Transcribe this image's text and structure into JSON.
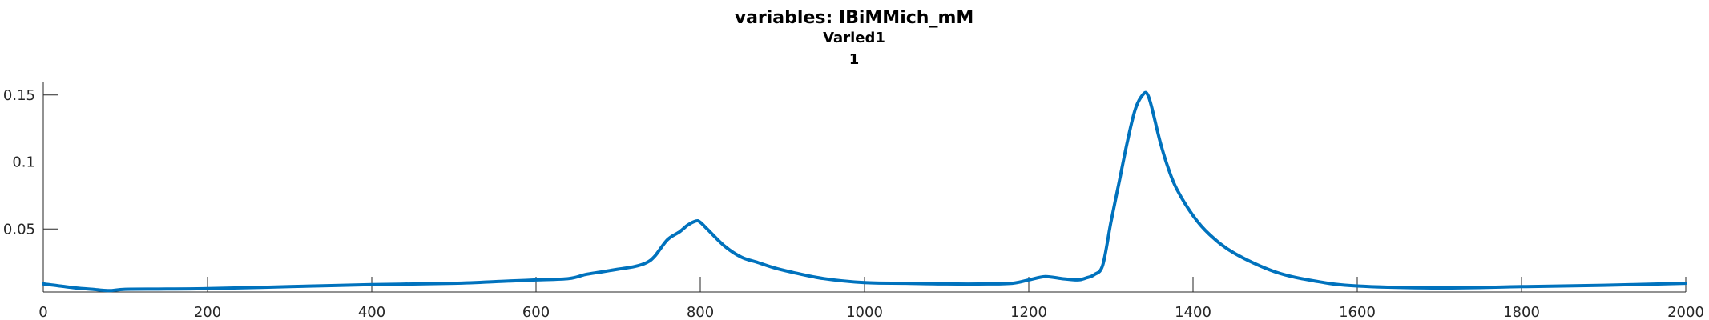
{
  "chart_data": {
    "type": "line",
    "title": "variables: IBiMMich_mM",
    "subtitle": "Varied1",
    "subtitle2": "1",
    "xlabel": "",
    "ylabel": "",
    "xlim": [
      0,
      2000
    ],
    "ylim": [
      0.003,
      0.16
    ],
    "grid": false,
    "x_ticks": [
      {
        "value": 0,
        "label": "0"
      },
      {
        "value": 200,
        "label": "200"
      },
      {
        "value": 400,
        "label": "400"
      },
      {
        "value": 600,
        "label": "600"
      },
      {
        "value": 800,
        "label": "800"
      },
      {
        "value": 1000,
        "label": "1000"
      },
      {
        "value": 1200,
        "label": "1200"
      },
      {
        "value": 1400,
        "label": "1400"
      },
      {
        "value": 1600,
        "label": "1600"
      },
      {
        "value": 1800,
        "label": "1800"
      },
      {
        "value": 2000,
        "label": "2000"
      }
    ],
    "y_ticks": [
      {
        "value": 0.05,
        "label": "0.05"
      },
      {
        "value": 0.1,
        "label": "0.1"
      },
      {
        "value": 0.15,
        "label": "0.15"
      }
    ],
    "series": [
      {
        "color": "#0072BD",
        "x": [
          0,
          20,
          40,
          60,
          80,
          100,
          150,
          200,
          300,
          400,
          500,
          560,
          600,
          640,
          660,
          680,
          700,
          720,
          735,
          745,
          760,
          775,
          785,
          795,
          800,
          810,
          830,
          850,
          870,
          890,
          910,
          950,
          1000,
          1050,
          1100,
          1150,
          1180,
          1200,
          1220,
          1240,
          1260,
          1270,
          1280,
          1290,
          1300,
          1310,
          1320,
          1330,
          1340,
          1345,
          1350,
          1360,
          1370,
          1380,
          1400,
          1420,
          1450,
          1500,
          1550,
          1600,
          1700,
          1800,
          1900,
          2000
        ],
        "y": [
          0.009,
          0.0075,
          0.006,
          0.005,
          0.004,
          0.005,
          0.0052,
          0.0055,
          0.007,
          0.0085,
          0.0095,
          0.011,
          0.012,
          0.013,
          0.016,
          0.018,
          0.02,
          0.022,
          0.025,
          0.03,
          0.042,
          0.048,
          0.053,
          0.056,
          0.055,
          0.049,
          0.037,
          0.029,
          0.025,
          0.021,
          0.018,
          0.013,
          0.01,
          0.0095,
          0.009,
          0.009,
          0.0095,
          0.012,
          0.0145,
          0.013,
          0.012,
          0.0135,
          0.016,
          0.023,
          0.055,
          0.085,
          0.115,
          0.14,
          0.151,
          0.15,
          0.14,
          0.115,
          0.095,
          0.08,
          0.06,
          0.046,
          0.032,
          0.018,
          0.011,
          0.0075,
          0.006,
          0.007,
          0.008,
          0.0095
        ]
      }
    ]
  }
}
